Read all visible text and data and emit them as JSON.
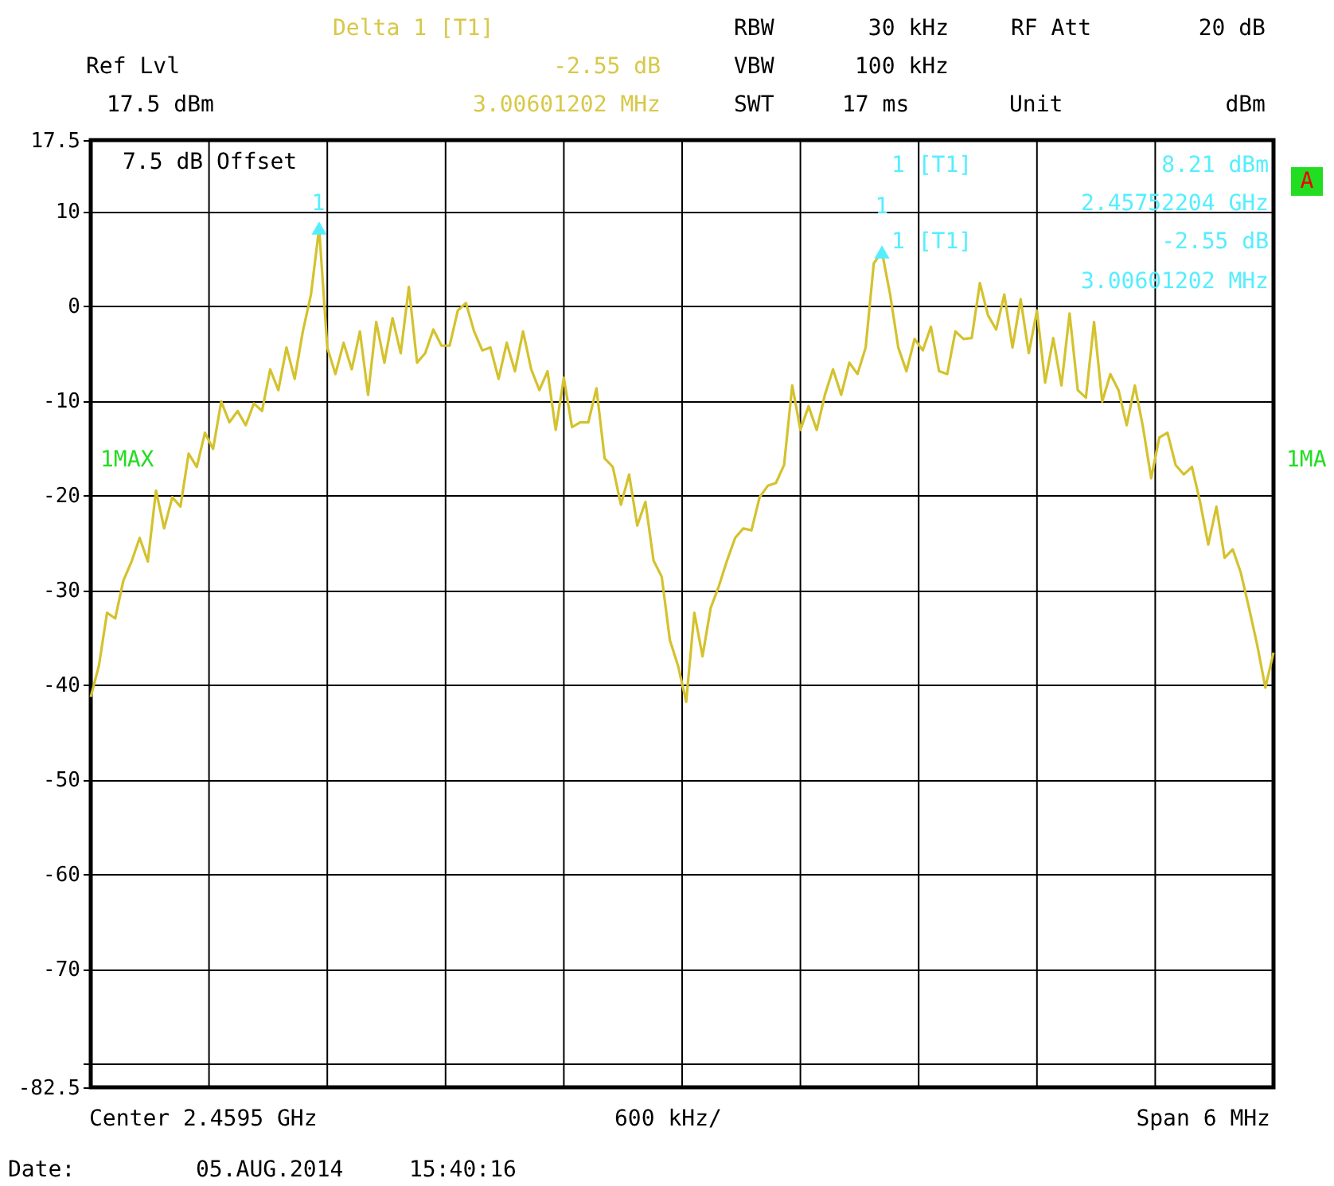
{
  "chart_data": {
    "type": "line",
    "categories": [
      null,
      null,
      null,
      null,
      null,
      null,
      null,
      null,
      null,
      null,
      null,
      null,
      null,
      null,
      null,
      null,
      null,
      null,
      null,
      null,
      null,
      null,
      null,
      null,
      null,
      null,
      null,
      null,
      null,
      null,
      null,
      null,
      null,
      null,
      null,
      null,
      null,
      null,
      null,
      null,
      null,
      null,
      null,
      null,
      null,
      null,
      null,
      null,
      null,
      null,
      null,
      null,
      null,
      null,
      null,
      null,
      null,
      null,
      null,
      null,
      null,
      null,
      null,
      null,
      null,
      null,
      null,
      null,
      null,
      null,
      null,
      null,
      null,
      null,
      null,
      null,
      null,
      null,
      null,
      null,
      null,
      null,
      null,
      null,
      null,
      null,
      null,
      null,
      null,
      null,
      null,
      null,
      null,
      null,
      null,
      null,
      null,
      null,
      null,
      null,
      null,
      null,
      null,
      null,
      null,
      null,
      null,
      null,
      null,
      null,
      null,
      null,
      null,
      null,
      null,
      null,
      null,
      null,
      null,
      null,
      null,
      null,
      null,
      null,
      null,
      null,
      null,
      null,
      null,
      null,
      null,
      null,
      null,
      null,
      null,
      null,
      null,
      null,
      null,
      null,
      null,
      null,
      null,
      null,
      null,
      null
    ],
    "ylim": [
      -82.5,
      17.5
    ],
    "yticks": [
      17.5,
      10,
      0,
      -10,
      -20,
      -30,
      -40,
      -50,
      -60,
      -70,
      {
        "value": -80,
        "label": null
      },
      -82.5
    ],
    "tick_labels": "y",
    "grid": true,
    "series": [
      {
        "color": "#d4c22e",
        "values": [
          -41.3,
          -38,
          -32.4,
          -33,
          -29,
          -27,
          -24.5,
          -27,
          -19.5,
          -23.5,
          -20.2,
          -21.2,
          -15.6,
          -17,
          -13.4,
          -15.1,
          -10.1,
          -12.3,
          -11.1,
          -12.6,
          -10.3,
          -11.1,
          -6.7,
          -8.9,
          -4.4,
          -7.7,
          -2.7,
          1.2,
          8.21,
          -4.4,
          -7.2,
          -3.9,
          -6.7,
          -2.7,
          -9.4,
          -1.7,
          -6,
          -1.3,
          -5,
          2,
          -6,
          -5,
          -2.5,
          -4.2,
          -4.2,
          -0.5,
          0.3,
          -2.7,
          -4.7,
          -4.4,
          -7.7,
          -3.9,
          -6.9,
          -2.7,
          -6.7,
          -8.9,
          -6.9,
          -13.1,
          -7.6,
          -12.8,
          -12.3,
          -12.3,
          -8.7,
          -16.1,
          -17,
          -21,
          -17.8,
          -23.2,
          -20.7,
          -26.9,
          -28.6,
          -35.3,
          -38,
          -41.8,
          -32.4,
          -37,
          -31.9,
          -29.6,
          -26.9,
          -24.5,
          -23.5,
          -23.7,
          -20.2,
          -19,
          -18.7,
          -16.8,
          -8.4,
          -13.1,
          -10.6,
          -13.1,
          -9.4,
          -6.7,
          -9.4,
          -6,
          -7.2,
          -4.4,
          4.5,
          5.7,
          1.2,
          -4.4,
          -6.9,
          -3.5,
          -4.7,
          -2.2,
          -6.9,
          -7.2,
          -2.7,
          -3.5,
          -3.4,
          2.4,
          -1,
          -2.5,
          1.2,
          -4.4,
          0.7,
          -5,
          -0.5,
          -8.1,
          -3.4,
          -8.4,
          -0.8,
          -8.9,
          -9.7,
          -1.7,
          -10.1,
          -7.2,
          -8.9,
          -12.6,
          -8.4,
          -12.8,
          -18.2,
          -13.9,
          -13.4,
          -16.8,
          -17.8,
          -17,
          -20.7,
          -25.2,
          -21.2,
          -26.6,
          -25.7,
          -28.2,
          -31.9,
          -35.8,
          -40.3,
          -36.6
        ]
      },
      {
        "type": "scatter",
        "color": "#55eeff",
        "marker": "triangle",
        "values": [
          null,
          null,
          null,
          null,
          null,
          null,
          null,
          null,
          null,
          null,
          null,
          null,
          null,
          null,
          null,
          null,
          null,
          null,
          null,
          null,
          null,
          null,
          null,
          null,
          null,
          null,
          null,
          null,
          8.21,
          null,
          null,
          null,
          null,
          null,
          null,
          null,
          null,
          null,
          null,
          null,
          null,
          null,
          null,
          null,
          null,
          null,
          null,
          null,
          null,
          null,
          null,
          null,
          null,
          null,
          null,
          null,
          null,
          null,
          null,
          null,
          null,
          null,
          null,
          null,
          null,
          null,
          null,
          null,
          null,
          null,
          null,
          null,
          null,
          null,
          null,
          null,
          null,
          null,
          null,
          null,
          null,
          null,
          null,
          null,
          null,
          null,
          null,
          null,
          null,
          null,
          null,
          null,
          null,
          null,
          null,
          null,
          null,
          5.7,
          null,
          null,
          null,
          null,
          null,
          null,
          null,
          null,
          null,
          null,
          null,
          null,
          null,
          null,
          null,
          null,
          null,
          null,
          null,
          null,
          null,
          null,
          null,
          null,
          null,
          null,
          null,
          null,
          null,
          null,
          null,
          null,
          null,
          null,
          null,
          null,
          null,
          null,
          null,
          null,
          null,
          null,
          null,
          null,
          null,
          null,
          null,
          null
        ]
      }
    ],
    "annotations": [
      "Delta 1 [T1]",
      "Ref Lvl",
      "-2.55 dB",
      "RBW",
      "30 kHz",
      "RF Att",
      "20 dB",
      "VBW",
      "100 kHz",
      "17.5 dBm",
      "3.00601202 MHz",
      "SWT",
      "17 ms",
      "Unit",
      "dBm",
      "7.5 dB Offset",
      "1 [T1]",
      "8.21 dBm",
      "2.45752204 GHz",
      "1 [T1]",
      "-2.55 dB",
      "3.00601202 MHz",
      "1MAX",
      "1MA",
      "A",
      "Center 2.4595 GHz",
      "600 kHz/",
      "Span 6 MHz",
      "Date:",
      "05.AUG.2014",
      "15:40:16",
      "1",
      "1"
    ]
  }
}
